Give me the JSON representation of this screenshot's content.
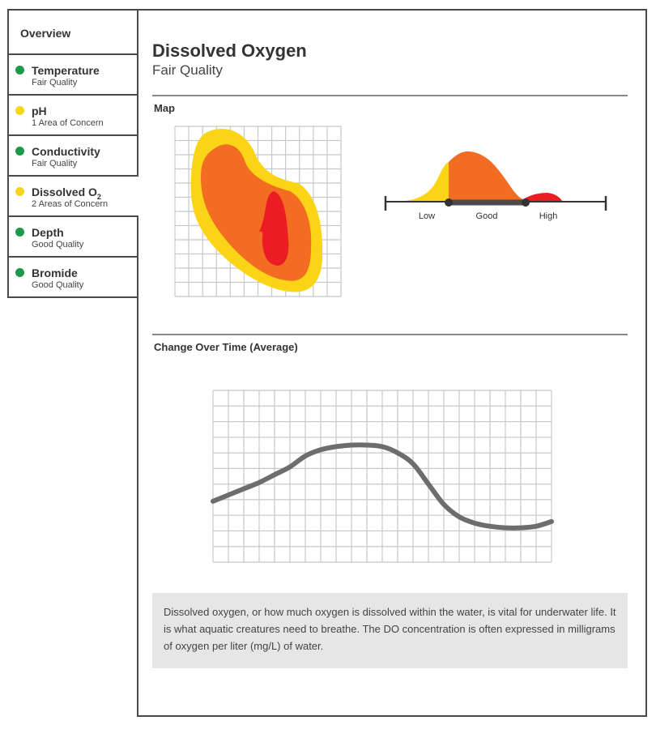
{
  "sidebar": {
    "overview_label": "Overview",
    "items": [
      {
        "title": "Temperature",
        "subtitle": "Fair Quality",
        "status_color": "#1a9a48"
      },
      {
        "title": "pH",
        "subtitle": "1 Area of Concern",
        "status_color": "#f5d51a"
      },
      {
        "title": "Conductivity",
        "subtitle": "Fair Quality",
        "status_color": "#1a9a48"
      },
      {
        "title": "Dissolved O",
        "title_sub": "2",
        "subtitle": "2 Areas of Concern",
        "status_color": "#f5d51a"
      },
      {
        "title": "Depth",
        "subtitle": "Good Quality",
        "status_color": "#1a9a48"
      },
      {
        "title": "Bromide",
        "subtitle": "Good Quality",
        "status_color": "#1a9a48"
      }
    ]
  },
  "header": {
    "title": "Dissolved Oxygen",
    "subtitle": "Fair Quality"
  },
  "map_section": {
    "label": "Map",
    "range_labels": {
      "low": "Low",
      "good": "Good",
      "high": "High"
    }
  },
  "change_section": {
    "label": "Change Over Time (Average)"
  },
  "description": "Dissolved oxygen, or how much oxygen is dissolved within the water, is vital for underwater life. It is what aquatic creatures need to breathe. The DO concentration is often  expressed in milligrams of oxygen per liter (mg/L) of water.",
  "colors": {
    "yellow": "#fbd417",
    "orange": "#f26d21",
    "red": "#ec1c24",
    "green": "#1a9a48",
    "grid": "#c8c8c8",
    "line": "#6d6d6e"
  },
  "chart_data": {
    "type": "line",
    "title": "Change Over Time (Average)",
    "xlabel": "",
    "ylabel": "",
    "x": [
      0,
      1,
      2,
      3,
      4,
      5,
      6,
      7,
      8,
      9,
      10,
      11,
      12,
      13,
      14,
      15,
      16,
      17,
      18,
      19,
      20,
      21,
      22
    ],
    "values": [
      3.9,
      4.3,
      4.7,
      5.1,
      5.6,
      6.1,
      6.8,
      7.2,
      7.4,
      7.5,
      7.5,
      7.4,
      7.0,
      6.3,
      5.0,
      3.7,
      2.9,
      2.5,
      2.3,
      2.2,
      2.2,
      2.3,
      2.6
    ],
    "xlim": [
      0,
      22
    ],
    "ylim": [
      0,
      11
    ],
    "grid": true
  }
}
